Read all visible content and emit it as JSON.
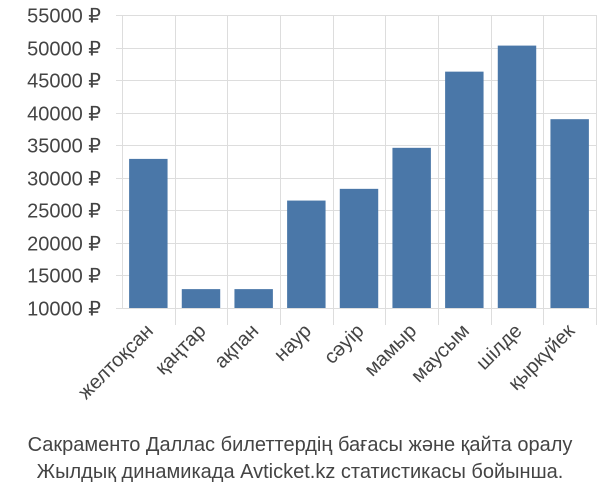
{
  "colors": {
    "bar": "#4a77a8",
    "grid": "#dddddd",
    "text": "#444444",
    "background": "#ffffff"
  },
  "chart_data": {
    "type": "bar",
    "categories": [
      "желтоқсан",
      "қаңтар",
      "ақпан",
      "наур",
      "сәуір",
      "мамыр",
      "маусым",
      "шілде",
      "қыркүйек"
    ],
    "values": [
      32900,
      12900,
      12900,
      26500,
      28300,
      34600,
      46300,
      50300,
      39000
    ],
    "ylim": [
      10000,
      55000
    ],
    "yticks": [
      10000,
      15000,
      20000,
      25000,
      30000,
      35000,
      40000,
      45000,
      50000,
      55000
    ],
    "ytick_labels": [
      "10000 ₽",
      "15000 ₽",
      "20000 ₽",
      "25000 ₽",
      "30000 ₽",
      "35000 ₽",
      "40000 ₽",
      "45000 ₽",
      "50000 ₽",
      "55000 ₽"
    ],
    "grid": true,
    "legend": "none"
  },
  "caption": {
    "line1": "Сакраменто Даллас билеттердің бағасы және қайта оралу",
    "line2": "Жылдық динамикада Avticket.kz статистикасы бойынша."
  }
}
